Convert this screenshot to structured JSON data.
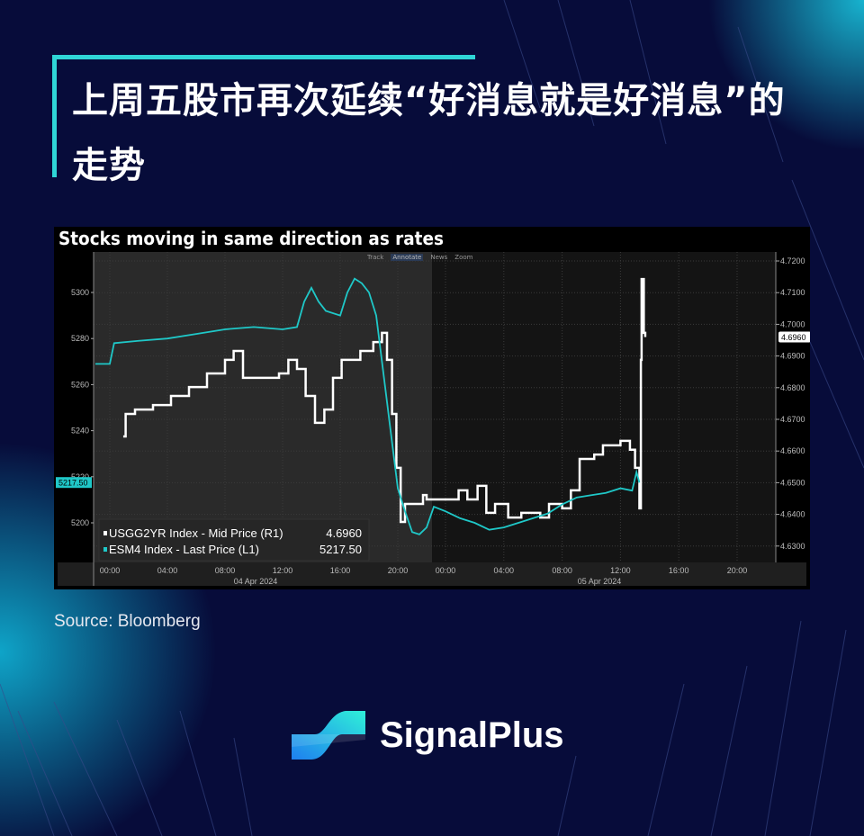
{
  "title": "上周五股市再次延续“好消息就是好消息”的走势",
  "source": "Source: Bloomberg",
  "brand": {
    "name": "SignalPlus"
  },
  "colors": {
    "background": "#070c3a",
    "accent": "#2fd6d6",
    "series_white": "#ffffff",
    "series_cyan": "#1fc8c8"
  },
  "chart_data": {
    "type": "line",
    "title": "Stocks moving in same direction as rates",
    "toolbar": [
      "Track",
      "Annotate",
      "News",
      "Zoom"
    ],
    "left_axis": {
      "ticks": [
        5200,
        5220,
        5240,
        5260,
        5280,
        5300
      ],
      "range": [
        5185,
        5320
      ]
    },
    "right_axis": {
      "ticks": [
        4.63,
        4.64,
        4.65,
        4.66,
        4.67,
        4.68,
        4.69,
        4.7,
        4.71,
        4.72
      ],
      "range": [
        4.6275,
        4.7225
      ]
    },
    "x_ticks": [
      {
        "date": "04 Apr 2024",
        "times": [
          "00:00",
          "04:00",
          "08:00",
          "12:00",
          "16:00",
          "20:00"
        ]
      },
      {
        "date": "05 Apr 2024",
        "times": [
          "00:00",
          "04:00",
          "08:00",
          "12:00",
          "16:00",
          "20:00"
        ]
      }
    ],
    "grid": true,
    "legend_position": "bottom-left",
    "series": [
      {
        "name": "USGG2YR Index - Mid Price (R1)",
        "last": "4.6960",
        "axis": "right",
        "color": "#ffffff",
        "points": [
          [
            "04 Apr 2024",
            "00:56",
            4.6646
          ],
          [
            "04 Apr 2024",
            "01:06",
            4.6717
          ],
          [
            "04 Apr 2024",
            "01:45",
            4.6731
          ],
          [
            "04 Apr 2024",
            "03:00",
            4.6745
          ],
          [
            "04 Apr 2024",
            "04:15",
            4.6774
          ],
          [
            "04 Apr 2024",
            "05:30",
            4.6802
          ],
          [
            "04 Apr 2024",
            "06:45",
            4.6845
          ],
          [
            "04 Apr 2024",
            "08:00",
            4.6888
          ],
          [
            "04 Apr 2024",
            "08:36",
            4.6916
          ],
          [
            "04 Apr 2024",
            "09:15",
            4.6831
          ],
          [
            "04 Apr 2024",
            "10:30",
            4.6831
          ],
          [
            "04 Apr 2024",
            "11:45",
            4.6845
          ],
          [
            "04 Apr 2024",
            "12:24",
            4.6888
          ],
          [
            "04 Apr 2024",
            "13:00",
            4.6859
          ],
          [
            "04 Apr 2024",
            "13:36",
            4.6774
          ],
          [
            "04 Apr 2024",
            "14:15",
            4.6689
          ],
          [
            "04 Apr 2024",
            "14:54",
            4.6731
          ],
          [
            "04 Apr 2024",
            "15:30",
            4.6831
          ],
          [
            "04 Apr 2024",
            "16:06",
            4.6888
          ],
          [
            "04 Apr 2024",
            "17:24",
            4.6916
          ],
          [
            "04 Apr 2024",
            "18:18",
            4.6944
          ],
          [
            "04 Apr 2024",
            "18:54",
            4.6973
          ],
          [
            "04 Apr 2024",
            "19:15",
            4.6888
          ],
          [
            "04 Apr 2024",
            "19:36",
            4.6717
          ],
          [
            "04 Apr 2024",
            "19:54",
            4.6547
          ],
          [
            "04 Apr 2024",
            "20:12",
            4.6376
          ],
          [
            "04 Apr 2024",
            "20:30",
            4.6433
          ],
          [
            "04 Apr 2024",
            "21:06",
            4.6433
          ],
          [
            "04 Apr 2024",
            "21:45",
            4.6461
          ],
          [
            "04 Apr 2024",
            "22:00",
            4.6447
          ],
          [
            "05 Apr 2024",
            "00:54",
            4.6476
          ],
          [
            "05 Apr 2024",
            "01:30",
            4.6447
          ],
          [
            "05 Apr 2024",
            "02:12",
            4.649
          ],
          [
            "05 Apr 2024",
            "02:48",
            4.6405
          ],
          [
            "05 Apr 2024",
            "03:24",
            4.6433
          ],
          [
            "05 Apr 2024",
            "04:18",
            4.639
          ],
          [
            "05 Apr 2024",
            "05:12",
            4.6405
          ],
          [
            "05 Apr 2024",
            "06:30",
            4.639
          ],
          [
            "05 Apr 2024",
            "07:06",
            4.6433
          ],
          [
            "05 Apr 2024",
            "08:00",
            4.6419
          ],
          [
            "05 Apr 2024",
            "08:36",
            4.6476
          ],
          [
            "05 Apr 2024",
            "09:12",
            4.6575
          ],
          [
            "05 Apr 2024",
            "10:12",
            4.6589
          ],
          [
            "05 Apr 2024",
            "10:48",
            4.6618
          ],
          [
            "05 Apr 2024",
            "12:00",
            4.6632
          ],
          [
            "05 Apr 2024",
            "12:39",
            4.6604
          ],
          [
            "05 Apr 2024",
            "13:00",
            4.6547
          ],
          [
            "05 Apr 2024",
            "13:18",
            4.6419
          ],
          [
            "05 Apr 2024",
            "13:24",
            4.6888
          ],
          [
            "05 Apr 2024",
            "13:27",
            4.7143
          ],
          [
            "05 Apr 2024",
            "13:36",
            4.6973
          ],
          [
            "05 Apr 2024",
            "13:42",
            4.696
          ]
        ]
      },
      {
        "name": "ESM4 Index - Last Price (L1)",
        "last": "5217.50",
        "axis": "left",
        "color": "#1fc8c8",
        "points": [
          [
            "04 Apr 2024",
            "-01:00",
            5269
          ],
          [
            "04 Apr 2024",
            "00:00",
            5269
          ],
          [
            "04 Apr 2024",
            "00:18",
            5278
          ],
          [
            "04 Apr 2024",
            "02:00",
            5279
          ],
          [
            "04 Apr 2024",
            "04:00",
            5280
          ],
          [
            "04 Apr 2024",
            "06:00",
            5282
          ],
          [
            "04 Apr 2024",
            "08:00",
            5284
          ],
          [
            "04 Apr 2024",
            "10:00",
            5285
          ],
          [
            "04 Apr 2024",
            "12:00",
            5284
          ],
          [
            "04 Apr 2024",
            "13:00",
            5285
          ],
          [
            "04 Apr 2024",
            "13:30",
            5296
          ],
          [
            "04 Apr 2024",
            "14:00",
            5302
          ],
          [
            "04 Apr 2024",
            "14:30",
            5296
          ],
          [
            "04 Apr 2024",
            "15:00",
            5292
          ],
          [
            "04 Apr 2024",
            "16:00",
            5290
          ],
          [
            "04 Apr 2024",
            "16:30",
            5300
          ],
          [
            "04 Apr 2024",
            "17:00",
            5306
          ],
          [
            "04 Apr 2024",
            "17:30",
            5304
          ],
          [
            "04 Apr 2024",
            "18:00",
            5300
          ],
          [
            "04 Apr 2024",
            "18:30",
            5290
          ],
          [
            "04 Apr 2024",
            "19:00",
            5265
          ],
          [
            "04 Apr 2024",
            "19:30",
            5240
          ],
          [
            "04 Apr 2024",
            "20:00",
            5215
          ],
          [
            "04 Apr 2024",
            "20:30",
            5205
          ],
          [
            "04 Apr 2024",
            "21:00",
            5196
          ],
          [
            "04 Apr 2024",
            "21:30",
            5195
          ],
          [
            "04 Apr 2024",
            "22:00",
            5198
          ],
          [
            "05 Apr 2024",
            "-00:48",
            5207
          ],
          [
            "05 Apr 2024",
            "00:00",
            5205
          ],
          [
            "05 Apr 2024",
            "01:00",
            5202
          ],
          [
            "05 Apr 2024",
            "02:00",
            5200
          ],
          [
            "05 Apr 2024",
            "03:00",
            5197
          ],
          [
            "05 Apr 2024",
            "04:00",
            5198
          ],
          [
            "05 Apr 2024",
            "05:00",
            5200
          ],
          [
            "05 Apr 2024",
            "06:00",
            5202
          ],
          [
            "05 Apr 2024",
            "07:00",
            5204
          ],
          [
            "05 Apr 2024",
            "08:00",
            5208
          ],
          [
            "05 Apr 2024",
            "09:00",
            5211
          ],
          [
            "05 Apr 2024",
            "10:00",
            5212
          ],
          [
            "05 Apr 2024",
            "11:00",
            5213
          ],
          [
            "05 Apr 2024",
            "12:00",
            5215
          ],
          [
            "05 Apr 2024",
            "12:48",
            5214
          ],
          [
            "05 Apr 2024",
            "13:06",
            5222
          ],
          [
            "05 Apr 2024",
            "13:18",
            5217.5
          ]
        ]
      }
    ]
  }
}
